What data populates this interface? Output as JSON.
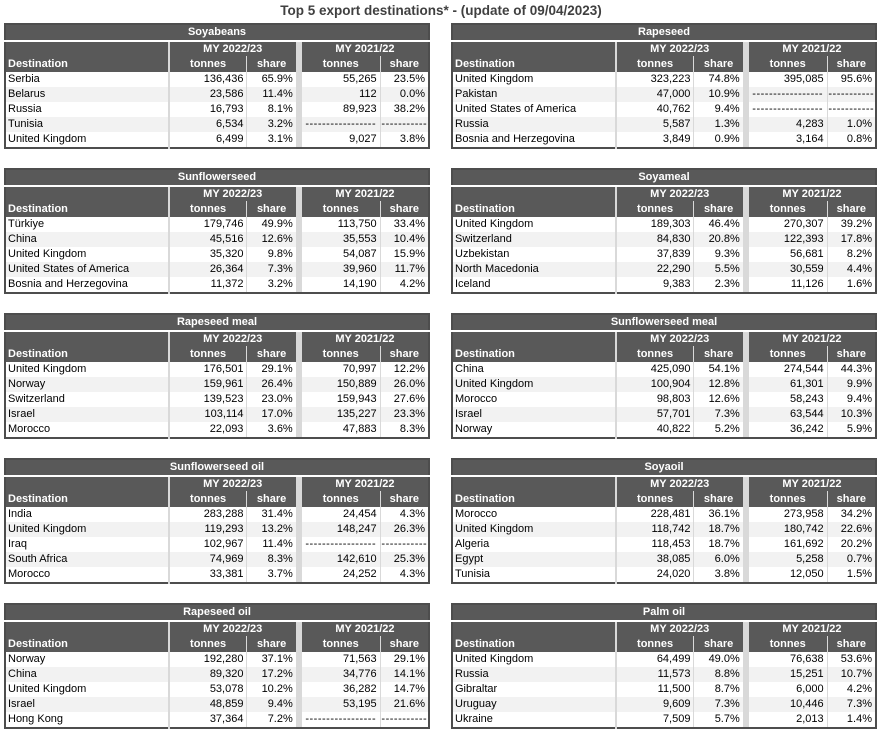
{
  "page": {
    "title": "Top 5 export destinations* - (update of 09/04/2023)"
  },
  "colors": {
    "header_bg": "#595959",
    "outer_border": "#4d4d4d",
    "row_alt": "#f2f2f2",
    "separator": "#d9d9d9",
    "title_text": "#404040"
  },
  "headers": {
    "destination_label": "Destination",
    "group_labels": [
      "MY 2022/23",
      "MY 2021/22"
    ],
    "sub_labels": [
      "tonnes",
      "share",
      "tonnes",
      "share"
    ]
  },
  "tables": [
    {
      "title": "Soyabeans",
      "rows": [
        [
          "Serbia",
          "136,436",
          "65.9%",
          "55,265",
          "23.5%"
        ],
        [
          "Belarus",
          "23,586",
          "11.4%",
          "112",
          "0.0%"
        ],
        [
          "Russia",
          "16,793",
          "8.1%",
          "89,923",
          "38.2%"
        ],
        [
          "Tunisia",
          "6,534",
          "3.2%",
          "-----------------",
          "-----------"
        ],
        [
          "United Kingdom",
          "6,499",
          "3.1%",
          "9,027",
          "3.8%"
        ]
      ]
    },
    {
      "title": "Rapeseed",
      "rows": [
        [
          "United Kingdom",
          "323,223",
          "74.8%",
          "395,085",
          "95.6%"
        ],
        [
          "Pakistan",
          "47,000",
          "10.9%",
          "-----------------",
          "-----------"
        ],
        [
          "United States of America",
          "40,762",
          "9.4%",
          "-----------------",
          "-----------"
        ],
        [
          "Russia",
          "5,587",
          "1.3%",
          "4,283",
          "1.0%"
        ],
        [
          "Bosnia and Herzegovina",
          "3,849",
          "0.9%",
          "3,164",
          "0.8%"
        ]
      ]
    },
    {
      "title": "Sunflowerseed",
      "rows": [
        [
          "Türkiye",
          "179,746",
          "49.9%",
          "113,750",
          "33.4%"
        ],
        [
          "China",
          "45,516",
          "12.6%",
          "35,553",
          "10.4%"
        ],
        [
          "United Kingdom",
          "35,320",
          "9.8%",
          "54,087",
          "15.9%"
        ],
        [
          "United States of America",
          "26,364",
          "7.3%",
          "39,960",
          "11.7%"
        ],
        [
          "Bosnia and Herzegovina",
          "11,372",
          "3.2%",
          "14,190",
          "4.2%"
        ]
      ]
    },
    {
      "title": "Soyameal",
      "rows": [
        [
          "United Kingdom",
          "189,303",
          "46.4%",
          "270,307",
          "39.2%"
        ],
        [
          "Switzerland",
          "84,830",
          "20.8%",
          "122,393",
          "17.8%"
        ],
        [
          "Uzbekistan",
          "37,839",
          "9.3%",
          "56,681",
          "8.2%"
        ],
        [
          "North Macedonia",
          "22,290",
          "5.5%",
          "30,559",
          "4.4%"
        ],
        [
          "Iceland",
          "9,383",
          "2.3%",
          "11,126",
          "1.6%"
        ]
      ]
    },
    {
      "title": "Rapeseed meal",
      "rows": [
        [
          "United Kingdom",
          "176,501",
          "29.1%",
          "70,997",
          "12.2%"
        ],
        [
          "Norway",
          "159,961",
          "26.4%",
          "150,889",
          "26.0%"
        ],
        [
          "Switzerland",
          "139,523",
          "23.0%",
          "159,943",
          "27.6%"
        ],
        [
          "Israel",
          "103,114",
          "17.0%",
          "135,227",
          "23.3%"
        ],
        [
          "Morocco",
          "22,093",
          "3.6%",
          "47,883",
          "8.3%"
        ]
      ]
    },
    {
      "title": "Sunflowerseed meal",
      "rows": [
        [
          "China",
          "425,090",
          "54.1%",
          "274,544",
          "44.3%"
        ],
        [
          "United Kingdom",
          "100,904",
          "12.8%",
          "61,301",
          "9.9%"
        ],
        [
          "Morocco",
          "98,803",
          "12.6%",
          "58,243",
          "9.4%"
        ],
        [
          "Israel",
          "57,701",
          "7.3%",
          "63,544",
          "10.3%"
        ],
        [
          "Norway",
          "40,822",
          "5.2%",
          "36,242",
          "5.9%"
        ]
      ]
    },
    {
      "title": "Sunflowerseed oil",
      "rows": [
        [
          "India",
          "283,288",
          "31.4%",
          "24,454",
          "4.3%"
        ],
        [
          "United Kingdom",
          "119,293",
          "13.2%",
          "148,247",
          "26.3%"
        ],
        [
          "Iraq",
          "102,967",
          "11.4%",
          "-----------------",
          "-----------"
        ],
        [
          "South Africa",
          "74,969",
          "8.3%",
          "142,610",
          "25.3%"
        ],
        [
          "Morocco",
          "33,381",
          "3.7%",
          "24,252",
          "4.3%"
        ]
      ]
    },
    {
      "title": "Soyaoil",
      "rows": [
        [
          "Morocco",
          "228,481",
          "36.1%",
          "273,958",
          "34.2%"
        ],
        [
          "United Kingdom",
          "118,742",
          "18.7%",
          "180,742",
          "22.6%"
        ],
        [
          "Algeria",
          "118,453",
          "18.7%",
          "161,692",
          "20.2%"
        ],
        [
          "Egypt",
          "38,085",
          "6.0%",
          "5,258",
          "0.7%"
        ],
        [
          "Tunisia",
          "24,020",
          "3.8%",
          "12,050",
          "1.5%"
        ]
      ]
    },
    {
      "title": "Rapeseed oil",
      "rows": [
        [
          "Norway",
          "192,280",
          "37.1%",
          "71,563",
          "29.1%"
        ],
        [
          "China",
          "89,320",
          "17.2%",
          "34,776",
          "14.1%"
        ],
        [
          "United Kingdom",
          "53,078",
          "10.2%",
          "36,282",
          "14.7%"
        ],
        [
          "Israel",
          "48,859",
          "9.4%",
          "53,195",
          "21.6%"
        ],
        [
          "Hong Kong",
          "37,364",
          "7.2%",
          "-----------------",
          "-----------"
        ]
      ]
    },
    {
      "title": "Palm oil",
      "rows": [
        [
          "United Kingdom",
          "64,499",
          "49.0%",
          "76,638",
          "53.6%"
        ],
        [
          "Russia",
          "11,573",
          "8.8%",
          "15,251",
          "10.7%"
        ],
        [
          "Gibraltar",
          "11,500",
          "8.7%",
          "6,000",
          "4.2%"
        ],
        [
          "Uruguay",
          "9,609",
          "7.3%",
          "10,446",
          "7.3%"
        ],
        [
          "Ukraine",
          "7,509",
          "5.7%",
          "2,013",
          "1.4%"
        ]
      ]
    }
  ]
}
